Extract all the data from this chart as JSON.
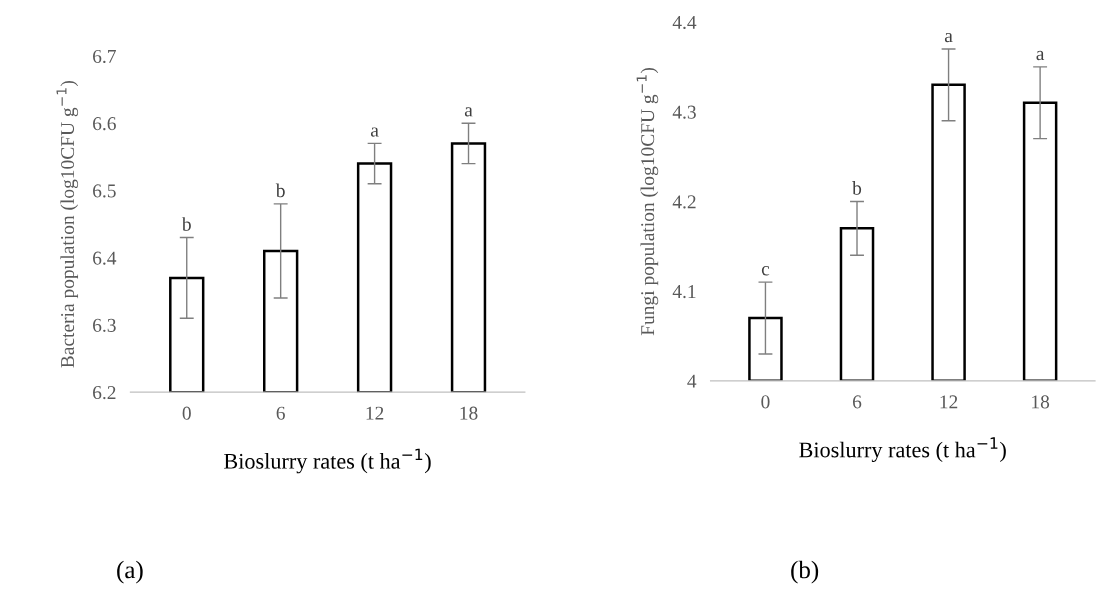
{
  "chart_data": [
    {
      "type": "bar",
      "categories": [
        "0",
        "6",
        "12",
        "18"
      ],
      "values": [
        6.37,
        6.41,
        6.54,
        6.57
      ],
      "errors": [
        0.06,
        0.07,
        0.03,
        0.03
      ],
      "color": "#ffffff",
      "xlabel": "Bioslurry rates (t ha$^{−1}$)",
      "ylabel": "Bacteria population (log10CFU g$^{−1}$)",
      "ylim": [
        6.2,
        6.7
      ],
      "yticks": [
        6.2,
        6.3,
        6.4,
        6.5,
        6.6,
        6.7
      ],
      "grid": false,
      "legend": false,
      "annotations": [
        "b",
        "b",
        "a",
        "a",
        "(a)"
      ]
    },
    {
      "type": "bar",
      "categories": [
        "0",
        "6",
        "12",
        "18"
      ],
      "values": [
        4.07,
        4.17,
        4.33,
        4.31
      ],
      "errors": [
        0.04,
        0.03,
        0.04,
        0.04
      ],
      "color": "#ffffff",
      "xlabel": "Bioslurry rates (t ha$^{−1}$)",
      "ylabel": "Fungi population (log10CFU g$^{−1}$)",
      "ylim": [
        4.0,
        4.4
      ],
      "yticks": [
        {
          "value": 4.0,
          "label": "4"
        },
        4.1,
        4.2,
        4.3,
        4.4
      ],
      "grid": false,
      "legend": false,
      "annotations": [
        "c",
        "b",
        "a",
        "a",
        "(b)"
      ]
    }
  ]
}
